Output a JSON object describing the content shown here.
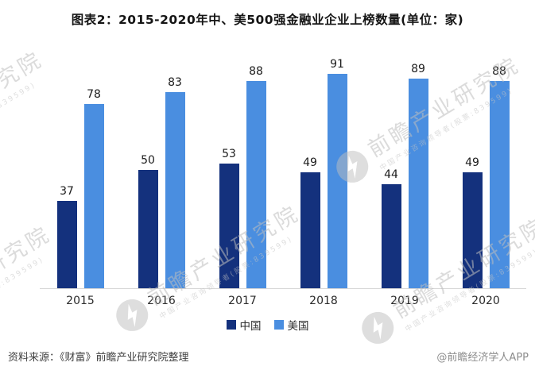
{
  "title": "图表2：2015-2020年中、美500强金融业企业上榜数量(单位：家)",
  "chart_data": {
    "type": "bar",
    "categories": [
      "2015",
      "2016",
      "2017",
      "2018",
      "2019",
      "2020"
    ],
    "series": [
      {
        "name": "中国",
        "color": "#14317D",
        "values": [
          37,
          50,
          53,
          49,
          44,
          49
        ]
      },
      {
        "name": "美国",
        "color": "#4A8EE0",
        "values": [
          78,
          83,
          88,
          91,
          89,
          88
        ]
      }
    ],
    "title": "图表2：2015-2020年中、美500强金融业企业上榜数量(单位：家)",
    "xlabel": "",
    "ylabel": "",
    "ylim": [
      0,
      100
    ],
    "grid": false,
    "value_labels": true,
    "legend_position": "bottom",
    "axis_line_color": "#d6d6d6"
  },
  "footer": {
    "source": "资料来源：《财富》前瞻产业研究院整理",
    "credit": "@前瞻经济学人APP"
  },
  "watermark": {
    "big_text": "前瞻产业研究院",
    "small_text": "中国产业咨询领导者(股票:839599)",
    "logo": "qianzhan-bolt-logo",
    "color": "#e2e2e2"
  }
}
